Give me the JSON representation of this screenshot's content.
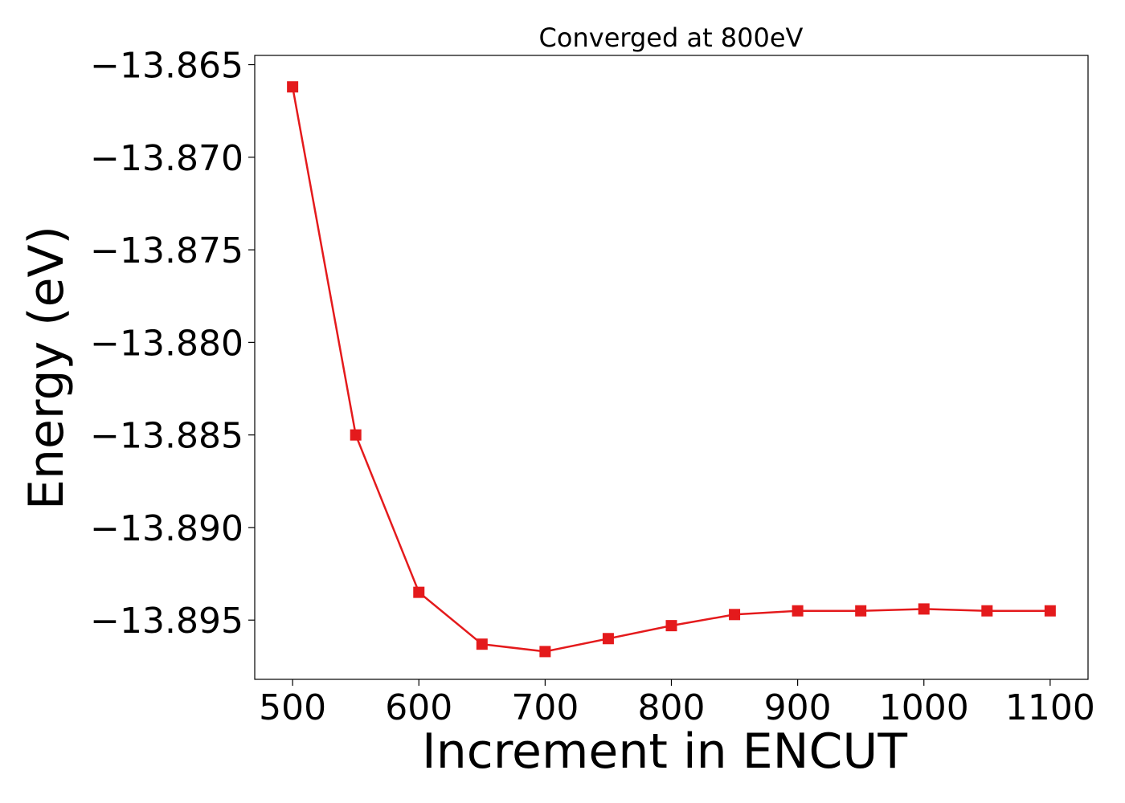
{
  "chart_data": {
    "type": "line",
    "title": "Converged at 800eV",
    "xlabel": "Increment in ENCUT",
    "ylabel": "Energy (eV)",
    "xlim": [
      470,
      1130
    ],
    "ylim": [
      -13.8982,
      -13.8645
    ],
    "xticks": [
      500,
      600,
      700,
      800,
      900,
      1000,
      1100
    ],
    "xtick_labels": [
      "500",
      "600",
      "700",
      "800",
      "900",
      "1000",
      "1100"
    ],
    "yticks": [
      -13.865,
      -13.87,
      -13.875,
      -13.88,
      -13.885,
      -13.89,
      -13.895
    ],
    "ytick_labels": [
      "−13.865",
      "−13.870",
      "−13.875",
      "−13.880",
      "−13.885",
      "−13.890",
      "−13.895"
    ],
    "grid": false,
    "series": [
      {
        "color": "#e41a1c",
        "marker": "square",
        "x": [
          500,
          550,
          600,
          650,
          700,
          750,
          800,
          850,
          900,
          950,
          1000,
          1050,
          1100
        ],
        "y": [
          -13.8662,
          -13.885,
          -13.8935,
          -13.8963,
          -13.8967,
          -13.896,
          -13.8953,
          -13.8947,
          -13.8945,
          -13.8945,
          -13.8944,
          -13.8945,
          -13.8945
        ]
      }
    ]
  }
}
